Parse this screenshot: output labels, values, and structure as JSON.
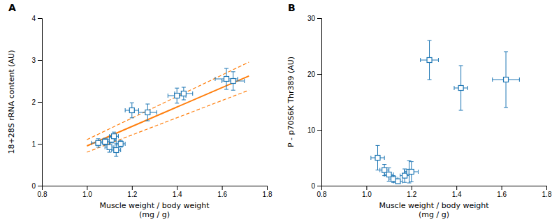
{
  "chart_data": [
    {
      "type": "scatter",
      "title": "A",
      "xlabel": "Muscle weight / body weight\n(mg / g)",
      "ylabel": "18+28S rRNA content (AU)",
      "xlim": [
        0.8,
        1.8
      ],
      "ylim": [
        0,
        4
      ],
      "xticks": [
        0.8,
        {
          "value": 1.0,
          "label": "1.0"
        },
        1.2,
        1.4,
        1.6,
        1.8
      ],
      "yticks": [
        0,
        1,
        2,
        3,
        4
      ],
      "grid": false,
      "series": [
        {
          "type": "scatter",
          "marker": "square",
          "x": [
            1.05,
            1.08,
            1.1,
            1.11,
            1.12,
            1.13,
            1.15,
            1.2,
            1.27,
            1.4,
            1.43,
            1.62,
            1.65
          ],
          "values": [
            1.02,
            1.05,
            0.92,
            1.1,
            1.18,
            0.85,
            1.0,
            1.8,
            1.75,
            2.15,
            2.2,
            2.55,
            2.5
          ],
          "xerr": [
            0.03,
            0.02,
            0.02,
            0.02,
            0.02,
            0.02,
            0.02,
            0.03,
            0.04,
            0.04,
            0.04,
            0.05,
            0.05
          ],
          "yerr": [
            0.1,
            0.08,
            0.12,
            0.08,
            0.1,
            0.15,
            0.08,
            0.18,
            0.2,
            0.18,
            0.15,
            0.25,
            0.22
          ]
        },
        {
          "type": "line",
          "line_style": "solid",
          "x": [
            1.0,
            1.72
          ],
          "values": [
            0.95,
            2.62
          ]
        },
        {
          "type": "line",
          "line_style": "dashed",
          "x": [
            1.0,
            1.72
          ],
          "values": [
            1.1,
            2.95
          ]
        },
        {
          "type": "line",
          "line_style": "dashed",
          "x": [
            1.0,
            1.72
          ],
          "values": [
            0.8,
            2.28
          ]
        }
      ]
    },
    {
      "type": "scatter",
      "title": "B",
      "xlabel": "Muscle weight / body weight\n(mg / g)",
      "ylabel": "P - p70S6K Thr389 (AU)",
      "xlim": [
        0.8,
        1.8
      ],
      "ylim": [
        0,
        30
      ],
      "xticks": [
        0.8,
        {
          "value": 1.0,
          "label": "1.0"
        },
        1.2,
        1.4,
        1.6,
        1.8
      ],
      "yticks": [
        0,
        10,
        20,
        30
      ],
      "grid": false,
      "series": [
        {
          "type": "scatter",
          "marker": "square",
          "x": [
            1.05,
            1.08,
            1.1,
            1.12,
            1.14,
            1.17,
            1.19,
            1.2,
            1.28,
            1.42,
            1.62
          ],
          "values": [
            5.0,
            2.8,
            2.0,
            1.2,
            0.8,
            1.8,
            2.5,
            2.5,
            22.5,
            17.5,
            19.0
          ],
          "xerr": [
            0.03,
            0.02,
            0.02,
            0.02,
            0.02,
            0.02,
            0.02,
            0.03,
            0.04,
            0.03,
            0.06
          ],
          "yerr": [
            2.2,
            1.0,
            1.2,
            0.6,
            0.4,
            1.2,
            2.0,
            1.8,
            3.5,
            4.0,
            5.0
          ]
        }
      ]
    }
  ]
}
